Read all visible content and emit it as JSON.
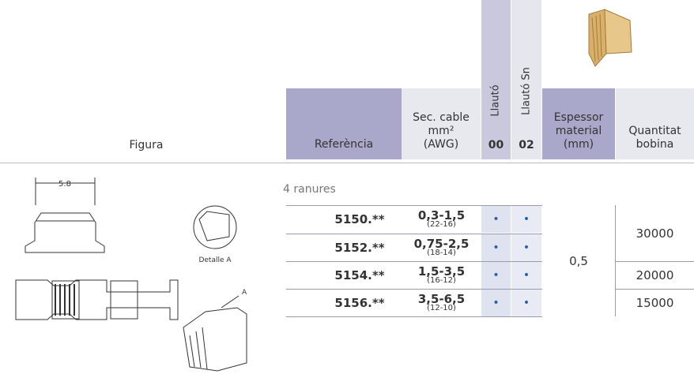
{
  "header": {
    "figura": "Figura",
    "referencia": "Referència",
    "sec_cable": [
      "Sec. cable",
      "mm²",
      "(AWG)"
    ],
    "llauto": {
      "label": "Llautó",
      "code": "00"
    },
    "llauto_sn": {
      "label": "Llautó Sn",
      "code": "02"
    },
    "espessor": [
      "Espessor",
      "material",
      "(mm)"
    ],
    "quantitat": [
      "Quantitat",
      "bobina"
    ]
  },
  "section": "4 ranures",
  "rows": [
    {
      "ref": "5150.**",
      "section": "0,3-1,5",
      "awg": "(22-16)",
      "llauto": "•",
      "llauto_sn": "•"
    },
    {
      "ref": "5152.**",
      "section": "0,75-2,5",
      "awg": "(18-14)",
      "llauto": "•",
      "llauto_sn": "•"
    },
    {
      "ref": "5154.**",
      "section": "1,5-3,5",
      "awg": "(16-12)",
      "llauto": "•",
      "llauto_sn": "•"
    },
    {
      "ref": "5156.**",
      "section": "3,5-6,5",
      "awg": "(12-10)",
      "llauto": "•",
      "llauto_sn": "•"
    }
  ],
  "espessor": "0,5",
  "quantitats": [
    "30000",
    "20000",
    "15000"
  ],
  "figure_labels": {
    "dimension": "5.8",
    "detail": "Detalle A",
    "callout": "A"
  }
}
